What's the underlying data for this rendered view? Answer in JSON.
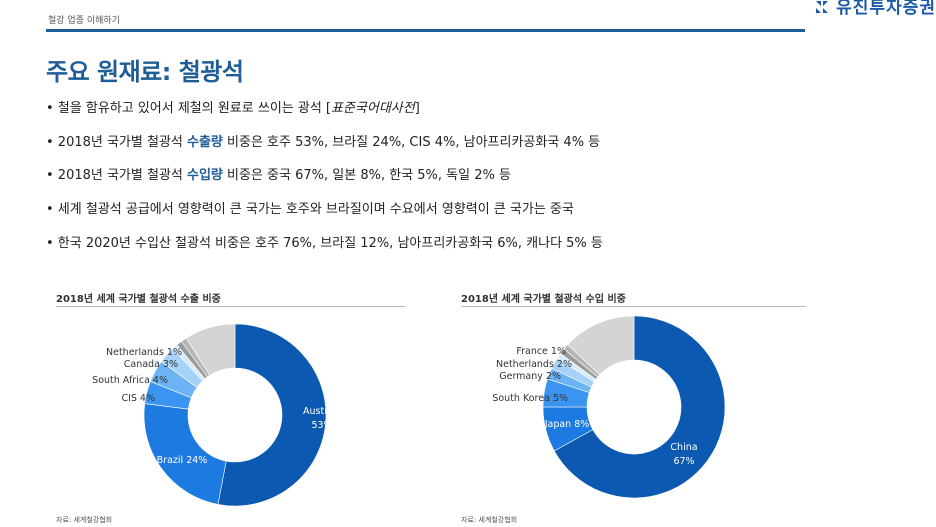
{
  "header": {
    "label": "철강 업종 이해하기",
    "logo_text": "유진투자증권"
  },
  "title": "주요 원재료: 철광석",
  "bullets": {
    "b1": {
      "text": "• 철을 함유하고 있어서 제철의 원료로 쓰이는 광석 [",
      "italic": "표준국어대사전",
      "tail": "]"
    },
    "b2": {
      "pre": "• 2018년 국가별 철광석 ",
      "hl": "수출량",
      "post": " 비중은 호주 53%, 브라질 24%, CIS 4%, 남아프리카공화국 4% 등"
    },
    "b3": {
      "pre": "• 2018년 국가별 철광석 ",
      "hl": "수입량",
      "post": " 비중은 중국 67%, 일본 8%, 한국 5%, 독일 2% 등"
    },
    "b4": {
      "text": "• 세계 철광석 공급에서 영향력이 큰 국가는 호주와 브라질이며 수요에서 영향력이 큰 국가는 중국"
    },
    "b5": {
      "text": "• 한국 2020년 수입산 철광석 비중은 호주 76%, 브라질 12%, 남아프리카공화국 6%, 캐나다 5% 등"
    }
  },
  "chart_data": [
    {
      "type": "pie",
      "title": "2018년 세계 국가별 철광석 수출 비중",
      "source": "자료: 세계철강협회",
      "slices": [
        {
          "label": "Australia",
          "value": 53,
          "color": "#0b59b0",
          "text": "Australia",
          "pct": "53%"
        },
        {
          "label": "Brazil",
          "value": 24,
          "color": "#1c7ae0",
          "text": "Brazil 24%"
        },
        {
          "label": "CIS",
          "value": 4,
          "color": "#3b95f0",
          "text": "CIS 4%"
        },
        {
          "label": "South Africa",
          "value": 4,
          "color": "#6cb4f5",
          "text": "South Africa 4%"
        },
        {
          "label": "Canada",
          "value": 3,
          "color": "#a6d2f8",
          "text": "Canada 3%"
        },
        {
          "label": "Netherlands",
          "value": 1,
          "color": "#d7ebfb",
          "text": "Netherlands 1%"
        },
        {
          "label": "",
          "value": 1,
          "color": "#9a9a9a"
        },
        {
          "label": "",
          "value": 1,
          "color": "#b5b5b5"
        },
        {
          "label": "",
          "value": 9,
          "color": "#d4d4d4"
        }
      ]
    },
    {
      "type": "pie",
      "title": "2018년 세계 국가별 철광석 수입 비중",
      "source": "자료: 세계철강협회",
      "slices": [
        {
          "label": "China",
          "value": 67,
          "color": "#0b59b0",
          "text": "China",
          "pct": "67%"
        },
        {
          "label": "Japan",
          "value": 8,
          "color": "#1c7ae0",
          "text": "Japan 8%"
        },
        {
          "label": "South Korea",
          "value": 5,
          "color": "#3b95f0",
          "text": "South Korea 5%"
        },
        {
          "label": "Germany",
          "value": 2,
          "color": "#6cb4f5",
          "text": "Germany 2%"
        },
        {
          "label": "Netherlands",
          "value": 2,
          "color": "#a6d2f8",
          "text": "Netherlands 2%"
        },
        {
          "label": "France",
          "value": 1,
          "color": "#d7ebfb",
          "text": "France 1%"
        },
        {
          "label": "",
          "value": 1,
          "color": "#9a9a9a"
        },
        {
          "label": "",
          "value": 1,
          "color": "#b5b5b5"
        },
        {
          "label": "",
          "value": 13,
          "color": "#d4d4d4"
        }
      ]
    }
  ]
}
